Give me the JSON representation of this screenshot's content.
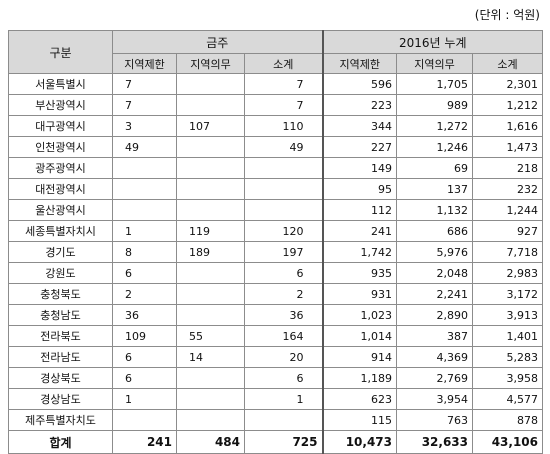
{
  "unit_note": "(단위 : 억원)",
  "header": {
    "category": "구분",
    "group_1": "금주",
    "group_2": "2016년 누계",
    "sub": [
      "지역제한",
      "지역의무",
      "소계",
      "지역제한",
      "지역의무",
      "소계"
    ]
  },
  "rows": [
    {
      "name": "서울특별시",
      "v": [
        "7",
        "",
        "7",
        "596",
        "1,705",
        "2,301"
      ]
    },
    {
      "name": "부산광역시",
      "v": [
        "7",
        "",
        "7",
        "223",
        "989",
        "1,212"
      ]
    },
    {
      "name": "대구광역시",
      "v": [
        "3",
        "107",
        "110",
        "344",
        "1,272",
        "1,616"
      ]
    },
    {
      "name": "인천광역시",
      "v": [
        "49",
        "",
        "49",
        "227",
        "1,246",
        "1,473"
      ]
    },
    {
      "name": "광주광역시",
      "v": [
        "",
        "",
        "",
        "149",
        "69",
        "218"
      ]
    },
    {
      "name": "대전광역시",
      "v": [
        "",
        "",
        "",
        "95",
        "137",
        "232"
      ]
    },
    {
      "name": "울산광역시",
      "v": [
        "",
        "",
        "",
        "112",
        "1,132",
        "1,244"
      ]
    },
    {
      "name": "세종특별자치시",
      "v": [
        "1",
        "119",
        "120",
        "241",
        "686",
        "927"
      ]
    },
    {
      "name": "경기도",
      "v": [
        "8",
        "189",
        "197",
        "1,742",
        "5,976",
        "7,718"
      ]
    },
    {
      "name": "강원도",
      "v": [
        "6",
        "",
        "6",
        "935",
        "2,048",
        "2,983"
      ]
    },
    {
      "name": "충청북도",
      "v": [
        "2",
        "",
        "2",
        "931",
        "2,241",
        "3,172"
      ]
    },
    {
      "name": "충청남도",
      "v": [
        "36",
        "",
        "36",
        "1,023",
        "2,890",
        "3,913"
      ]
    },
    {
      "name": "전라북도",
      "v": [
        "109",
        "55",
        "164",
        "1,014",
        "387",
        "1,401"
      ]
    },
    {
      "name": "전라남도",
      "v": [
        "6",
        "14",
        "20",
        "914",
        "4,369",
        "5,283"
      ]
    },
    {
      "name": "경상북도",
      "v": [
        "6",
        "",
        "6",
        "1,189",
        "2,769",
        "3,958"
      ]
    },
    {
      "name": "경상남도",
      "v": [
        "1",
        "",
        "1",
        "623",
        "3,954",
        "4,577"
      ]
    },
    {
      "name": "제주특별자치도",
      "v": [
        "",
        "",
        "",
        "115",
        "763",
        "878"
      ]
    }
  ],
  "total": {
    "name": "합계",
    "v": [
      "241",
      "484",
      "725",
      "10,473",
      "32,633",
      "43,106"
    ]
  }
}
